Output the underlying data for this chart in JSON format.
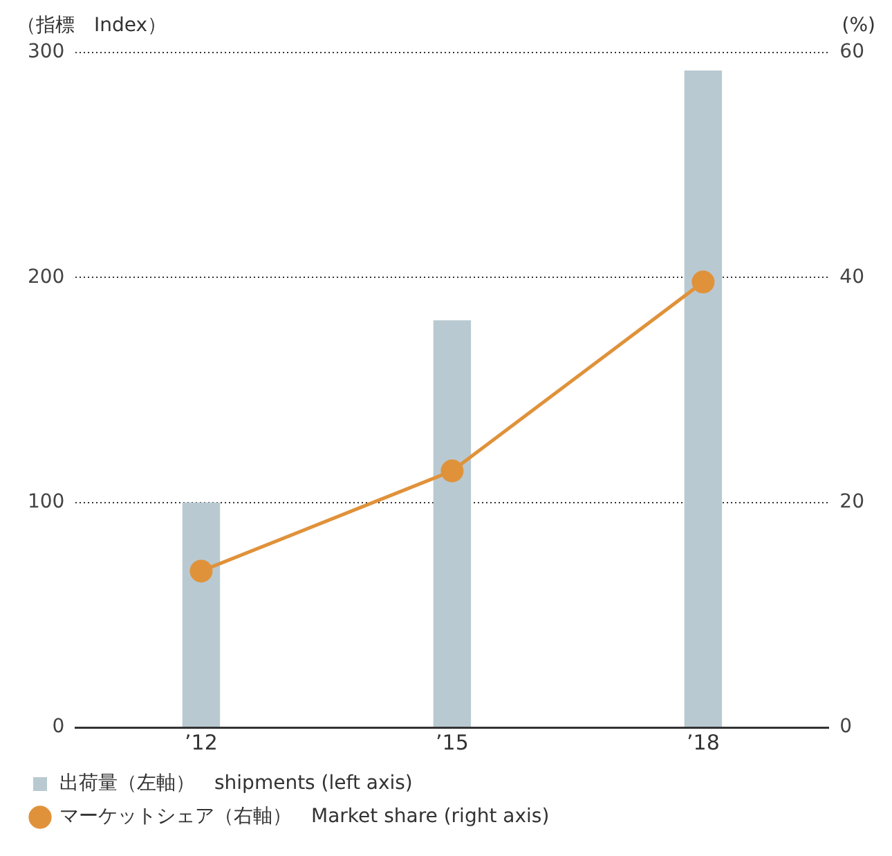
{
  "chart_data": {
    "type": "bar",
    "ylabel": "（指標　Index）",
    "y2label": "(%)",
    "categories": [
      "’12",
      "’15",
      "’18"
    ],
    "series": [
      {
        "name": "出荷量（左軸）　shipments (left axis)",
        "color": "#b9c9d1",
        "values": [
          100,
          181,
          292
        ]
      },
      {
        "type": "line",
        "axis": "y2",
        "name": "マーケットシェア（右軸）　Market share (right axis)",
        "color": "#e0923a",
        "values": [
          13.9,
          22.8,
          39.6
        ]
      }
    ],
    "ylim": [
      0,
      300
    ],
    "yticks": [
      0,
      100,
      200,
      300
    ],
    "y2lim": [
      0,
      60
    ],
    "y2ticks": [
      0,
      20,
      40,
      60
    ],
    "grid": "y",
    "legend": "bottom",
    "marker": "circle",
    "line_style": "solid"
  }
}
